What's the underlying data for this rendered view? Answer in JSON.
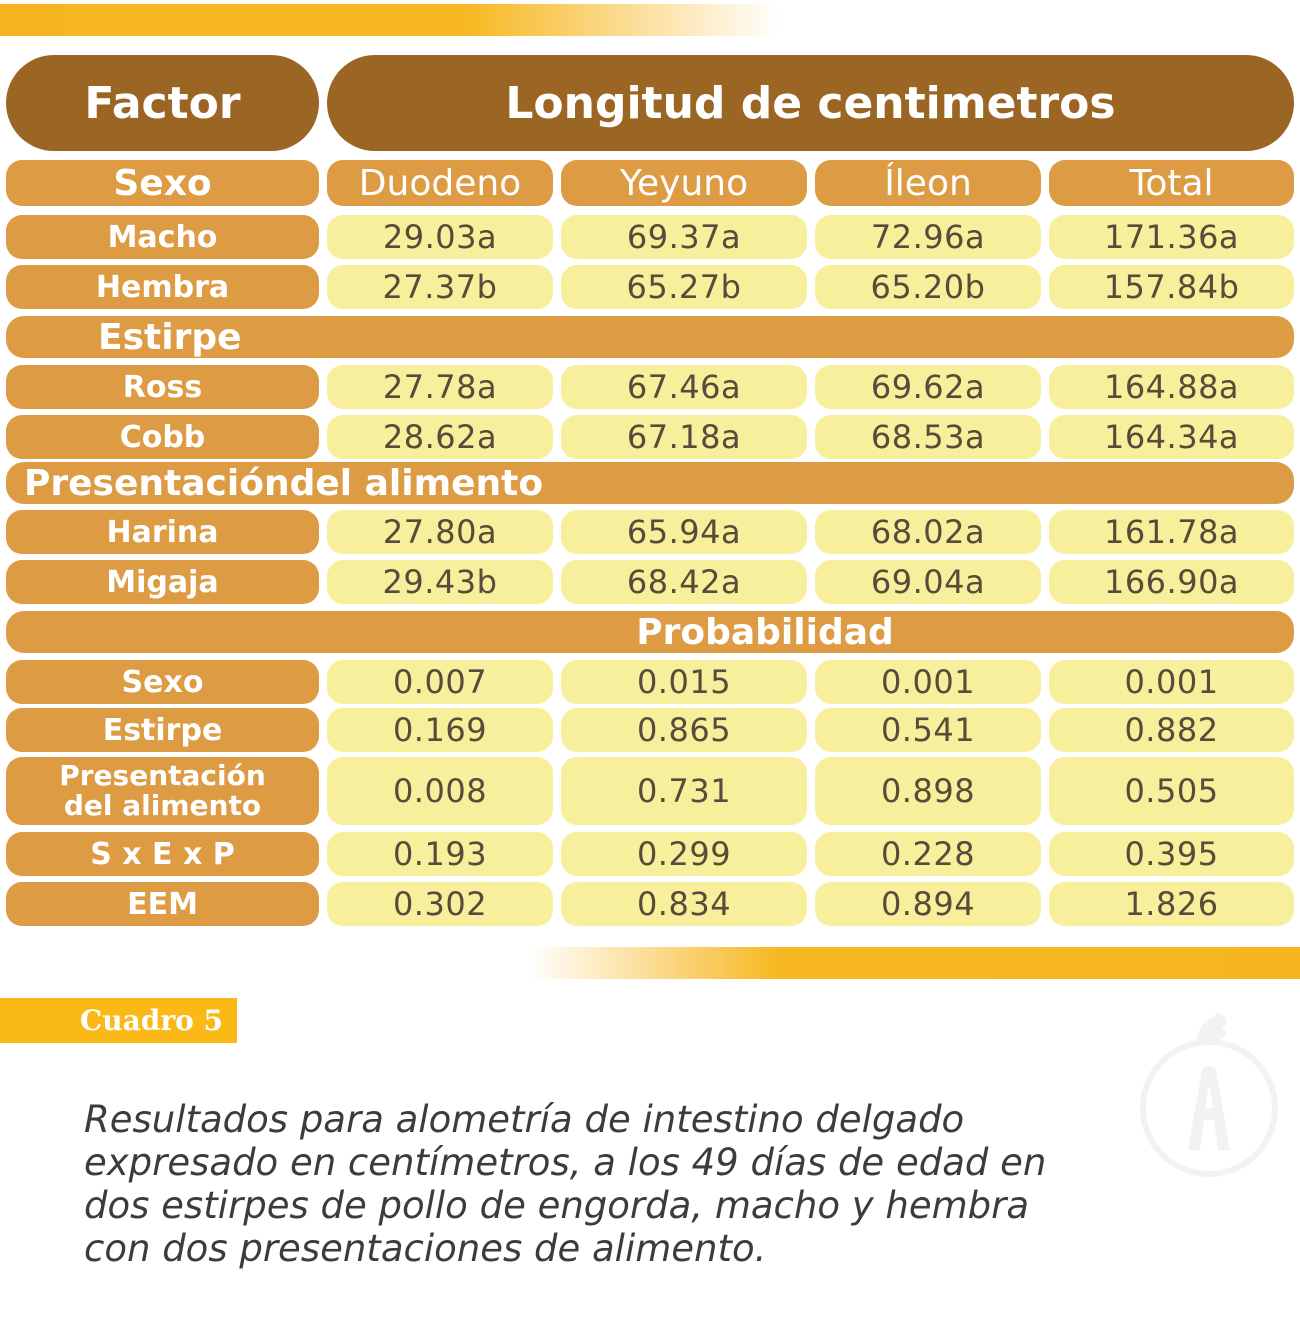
{
  "header": {
    "factor": "Factor",
    "main": "Longitud de centimetros"
  },
  "columns": {
    "label": "Sexo",
    "c1": "Duodeno",
    "c2": "Yeyuno",
    "c3": "Íleon",
    "c4": "Total"
  },
  "sections": {
    "estirpe": "Estirpe",
    "presentacion": "Presentacióndel alimento",
    "probabilidad": "Probabilidad"
  },
  "chart_data": {
    "type": "table",
    "title": "Longitud de centimetros",
    "columns": [
      "Factor",
      "Duodeno",
      "Yeyuno",
      "Íleon",
      "Total"
    ],
    "groups": [
      {
        "name": "Sexo",
        "rows": [
          {
            "label": "Macho",
            "values": [
              "29.03a",
              "69.37a",
              "72.96a",
              "171.36a"
            ]
          },
          {
            "label": "Hembra",
            "values": [
              "27.37b",
              "65.27b",
              "65.20b",
              "157.84b"
            ]
          }
        ]
      },
      {
        "name": "Estirpe",
        "rows": [
          {
            "label": "Ross",
            "values": [
              "27.78a",
              "67.46a",
              "69.62a",
              "164.88a"
            ]
          },
          {
            "label": "Cobb",
            "values": [
              "28.62a",
              "67.18a",
              "68.53a",
              "164.34a"
            ]
          }
        ]
      },
      {
        "name": "Presentacióndel alimento",
        "rows": [
          {
            "label": "Harina",
            "values": [
              "27.80a",
              "65.94a",
              "68.02a",
              "161.78a"
            ]
          },
          {
            "label": "Migaja",
            "values": [
              "29.43b",
              "68.42a",
              "69.04a",
              "166.90a"
            ]
          }
        ]
      },
      {
        "name": "Probabilidad",
        "rows": [
          {
            "label": "Sexo",
            "values": [
              "0.007",
              "0.015",
              "0.001",
              "0.001"
            ]
          },
          {
            "label": "Estirpe",
            "values": [
              "0.169",
              "0.865",
              "0.541",
              "0.882"
            ]
          },
          {
            "label": "Presentación del alimento",
            "label_lines": [
              "Presentación",
              "del alimento"
            ],
            "values": [
              "0.008",
              "0.731",
              "0.898",
              "0.505"
            ]
          },
          {
            "label": "S x E x P",
            "values": [
              "0.193",
              "0.299",
              "0.228",
              "0.395"
            ]
          },
          {
            "label": "EEM",
            "values": [
              "0.302",
              "0.834",
              "0.894",
              "1.826"
            ]
          }
        ]
      }
    ]
  },
  "tag": "Cuadro 5",
  "caption": "Resultados para alometría de intestino delgado expresado en centímetros, a los 49 días de edad en dos estirpes de pollo de engorda, macho y hembra con dos presentaciones de alimento."
}
